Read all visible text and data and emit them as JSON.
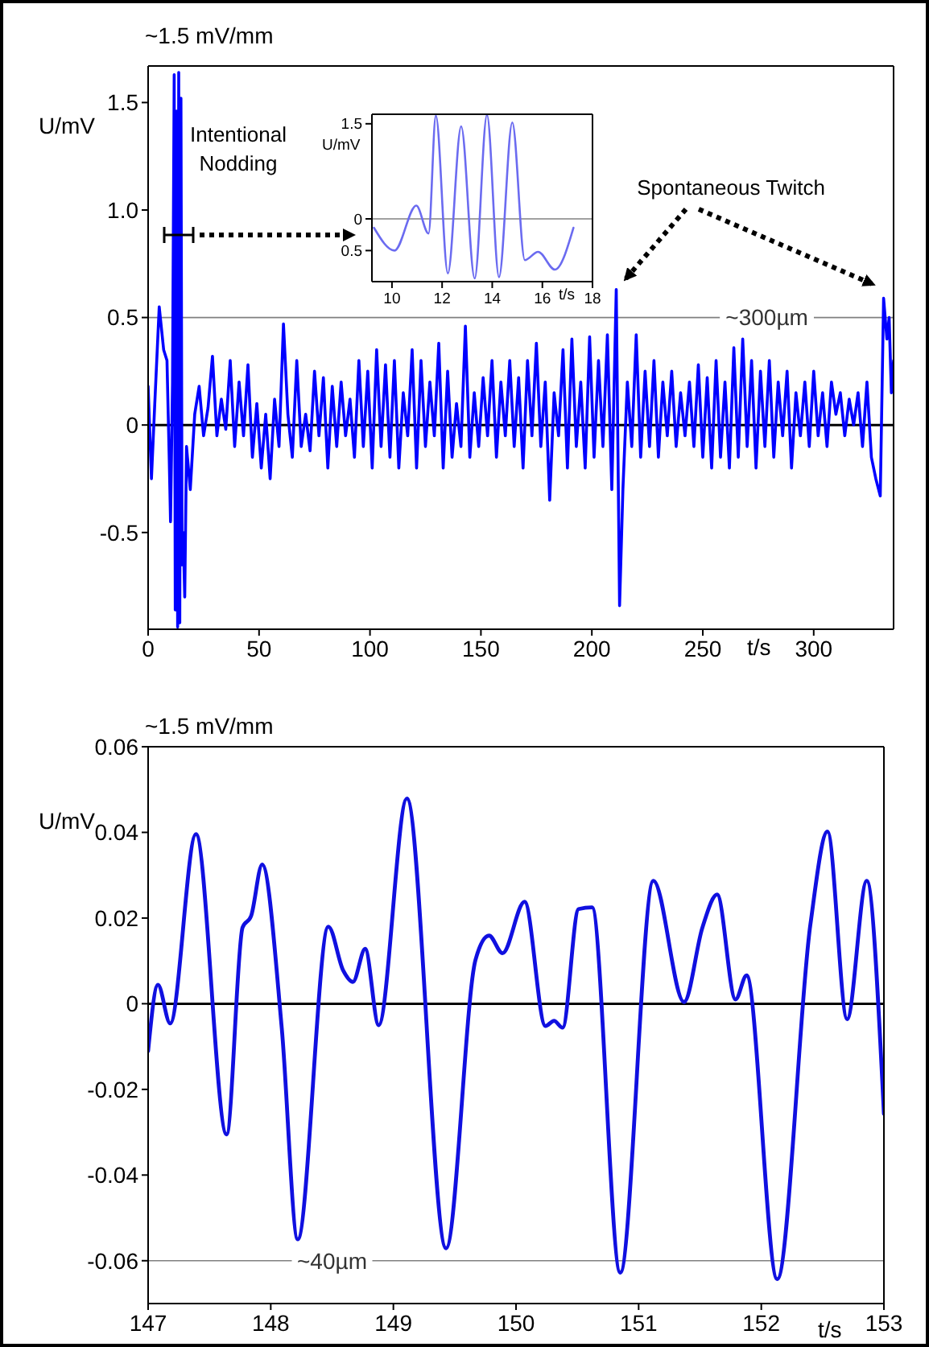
{
  "chart_data": [
    {
      "type": "line",
      "title": "~1.5 mV/mm",
      "xlabel": "t/s",
      "ylabel": "U/mV",
      "color": "#0000ff",
      "xlim": [
        0,
        336
      ],
      "xticks": [
        0,
        50,
        100,
        150,
        200,
        250,
        300
      ],
      "ylim": [
        -0.95,
        1.67
      ],
      "yticks": [
        -0.5,
        0,
        0.5,
        {
          "value": 1,
          "label": "1.0"
        },
        1.5
      ],
      "ref_lines": [
        {
          "axis": "y",
          "value": 0,
          "label": null,
          "color": "#000000"
        },
        {
          "axis": "y",
          "value": 0.5,
          "label": "~300µm",
          "color": "#808080"
        }
      ],
      "annotations": [
        "Intentional Nodding",
        "Spontaneous Twitch"
      ],
      "x": [
        0,
        1.5,
        3,
        5,
        7,
        8.5,
        9.5,
        10.1,
        11,
        11.75,
        12.23,
        12.76,
        13.3,
        13.79,
        14.27,
        14.8,
        15.3,
        15.8,
        16.5,
        17.3,
        19,
        21,
        23,
        25,
        27,
        29,
        31,
        33,
        35,
        37,
        39,
        41,
        43,
        45,
        47,
        49,
        51,
        53,
        55,
        57,
        59,
        61,
        63,
        65,
        67,
        69,
        71,
        73,
        75,
        77,
        79,
        81,
        83,
        85,
        87,
        89,
        91,
        93,
        95,
        97,
        99,
        101,
        103,
        105,
        107,
        109,
        111,
        113,
        115,
        117,
        119,
        121,
        123,
        125,
        127,
        129,
        131,
        133,
        135,
        137,
        139,
        141,
        143,
        145,
        147,
        149,
        151,
        153,
        155,
        157,
        159,
        161,
        163,
        165,
        167,
        169,
        171,
        173,
        175,
        177,
        179,
        181,
        183,
        185,
        187,
        189,
        191,
        193,
        195,
        197,
        199,
        201,
        203,
        205,
        207,
        209,
        211,
        212.5,
        214,
        216,
        218,
        220,
        222,
        224,
        226,
        228,
        230,
        232,
        234,
        236,
        238,
        240,
        242,
        244,
        246,
        248,
        250,
        252,
        254,
        256,
        258,
        260,
        262,
        264,
        266,
        268,
        270,
        272,
        274,
        276,
        278,
        280,
        282,
        284,
        286,
        288,
        290,
        292,
        294,
        296,
        298,
        300,
        302,
        304,
        306,
        308,
        310,
        312,
        314,
        316,
        318,
        320,
        322,
        324,
        326,
        328,
        330,
        331.5,
        333,
        334,
        335,
        336
      ],
      "values": [
        0.18,
        -0.25,
        0.1,
        0.55,
        0.35,
        0.3,
        -0.15,
        -0.45,
        0.2,
        1.63,
        -0.86,
        1.46,
        -0.94,
        1.64,
        -0.92,
        1.52,
        -0.65,
        -0.5,
        -0.8,
        -0.1,
        -0.3,
        0.05,
        0.18,
        -0.05,
        0.08,
        0.32,
        -0.05,
        0.12,
        -0.02,
        0.3,
        -0.1,
        0.2,
        -0.05,
        0.28,
        -0.15,
        0.1,
        -0.2,
        0.05,
        -0.25,
        0.12,
        -0.1,
        0.47,
        0.05,
        -0.15,
        0.3,
        -0.1,
        0.05,
        -0.12,
        0.25,
        -0.05,
        0.22,
        -0.2,
        0.18,
        -0.1,
        0.2,
        -0.05,
        0.12,
        -0.15,
        0.3,
        -0.1,
        0.25,
        -0.2,
        0.35,
        -0.1,
        0.28,
        -0.15,
        0.3,
        -0.2,
        0.15,
        -0.05,
        0.35,
        -0.2,
        0.3,
        -0.1,
        0.2,
        -0.05,
        0.38,
        -0.2,
        0.25,
        -0.15,
        0.1,
        -0.1,
        0.46,
        -0.15,
        0.15,
        -0.1,
        0.22,
        -0.05,
        0.3,
        -0.15,
        0.2,
        -0.05,
        0.3,
        -0.1,
        0.22,
        -0.2,
        0.3,
        -0.05,
        0.38,
        -0.1,
        0.2,
        -0.35,
        0.15,
        -0.05,
        0.35,
        -0.2,
        0.4,
        -0.1,
        0.2,
        -0.2,
        0.41,
        -0.15,
        0.3,
        -0.1,
        0.42,
        -0.3,
        0.63,
        -0.84,
        -0.3,
        0.2,
        -0.1,
        0.42,
        -0.15,
        0.25,
        -0.1,
        0.3,
        -0.15,
        0.2,
        -0.05,
        0.25,
        -0.1,
        0.15,
        -0.05,
        0.2,
        -0.1,
        0.28,
        -0.15,
        0.22,
        -0.2,
        0.3,
        -0.15,
        0.2,
        -0.2,
        0.36,
        -0.15,
        0.4,
        -0.1,
        0.3,
        -0.2,
        0.25,
        -0.1,
        0.3,
        -0.15,
        0.2,
        -0.05,
        0.25,
        -0.2,
        0.15,
        -0.05,
        0.2,
        -0.1,
        0.25,
        -0.05,
        0.15,
        -0.1,
        0.2,
        0.05,
        0.15,
        -0.05,
        0.12,
        0,
        0.15,
        -0.1,
        0.2,
        -0.15,
        -0.25,
        -0.33,
        0.59,
        0.4,
        0.5,
        0.15,
        0.3
      ]
    },
    {
      "type": "line",
      "xlabel": "t/s",
      "ylabel": "U/mV",
      "color": "#6b6bf0",
      "xlim": [
        9.2,
        18
      ],
      "xticks": [
        10,
        12,
        14,
        16,
        18
      ],
      "ylim": [
        -0.99,
        1.65
      ],
      "yticks": [
        {
          "value": -0.5,
          "label": "0.5"
        },
        0,
        1.5
      ],
      "ref_lines": [
        {
          "axis": "y",
          "value": 0,
          "label": null,
          "color": "#808080"
        }
      ],
      "x": [
        9.28,
        10.1,
        10.97,
        11.46,
        11.75,
        12.23,
        12.76,
        13.3,
        13.79,
        14.27,
        14.8,
        15.3,
        15.83,
        16.5,
        17.24
      ],
      "values": [
        -0.14,
        -0.5,
        0.21,
        -0.23,
        1.63,
        -0.86,
        1.46,
        -0.94,
        1.64,
        -0.92,
        1.52,
        -0.65,
        -0.52,
        -0.8,
        -0.14
      ]
    },
    {
      "type": "line",
      "title": "~1.5 mV/mm",
      "xlabel": "t/s",
      "ylabel": "U/mV",
      "color": "#1010e0",
      "xlim": [
        147,
        153
      ],
      "xticks": [
        147,
        148,
        149,
        150,
        151,
        152,
        153
      ],
      "ylim": [
        -0.07,
        0.06
      ],
      "yticks": [
        -0.06,
        -0.04,
        -0.02,
        0,
        0.02,
        0.04,
        0.06
      ],
      "ref_lines": [
        {
          "axis": "y",
          "value": 0,
          "label": null,
          "color": "#000000"
        },
        {
          "axis": "y",
          "value": -0.06,
          "label": "~40µm",
          "color": "#808080"
        }
      ],
      "x": [
        147,
        147.08,
        147.18,
        147.39,
        147.64,
        147.77,
        147.84,
        147.93,
        148.09,
        148.22,
        148.47,
        148.59,
        148.67,
        148.77,
        148.88,
        149.11,
        149.43,
        149.67,
        149.78,
        149.89,
        150.07,
        150.24,
        150.31,
        150.38,
        150.51,
        150.62,
        150.85,
        151.12,
        151.37,
        151.52,
        151.64,
        151.79,
        151.88,
        152.13,
        152.4,
        152.54,
        152.7,
        152.86,
        153
      ],
      "values": [
        -0.011,
        0.0044,
        -0.0046,
        0.0396,
        -0.0305,
        0.0178,
        0.0205,
        0.0325,
        -0.0058,
        -0.055,
        0.018,
        0.0078,
        0.0051,
        0.0128,
        -0.005,
        0.0479,
        -0.0571,
        0.0103,
        0.0159,
        0.0118,
        0.0238,
        -0.0052,
        -0.004,
        -0.0056,
        0.0221,
        0.0225,
        -0.0628,
        0.0287,
        0.0004,
        0.0178,
        0.0255,
        0.001,
        0.0066,
        -0.0643,
        0.0184,
        0.0402,
        -0.0036,
        0.0287,
        -0.0257
      ]
    }
  ]
}
